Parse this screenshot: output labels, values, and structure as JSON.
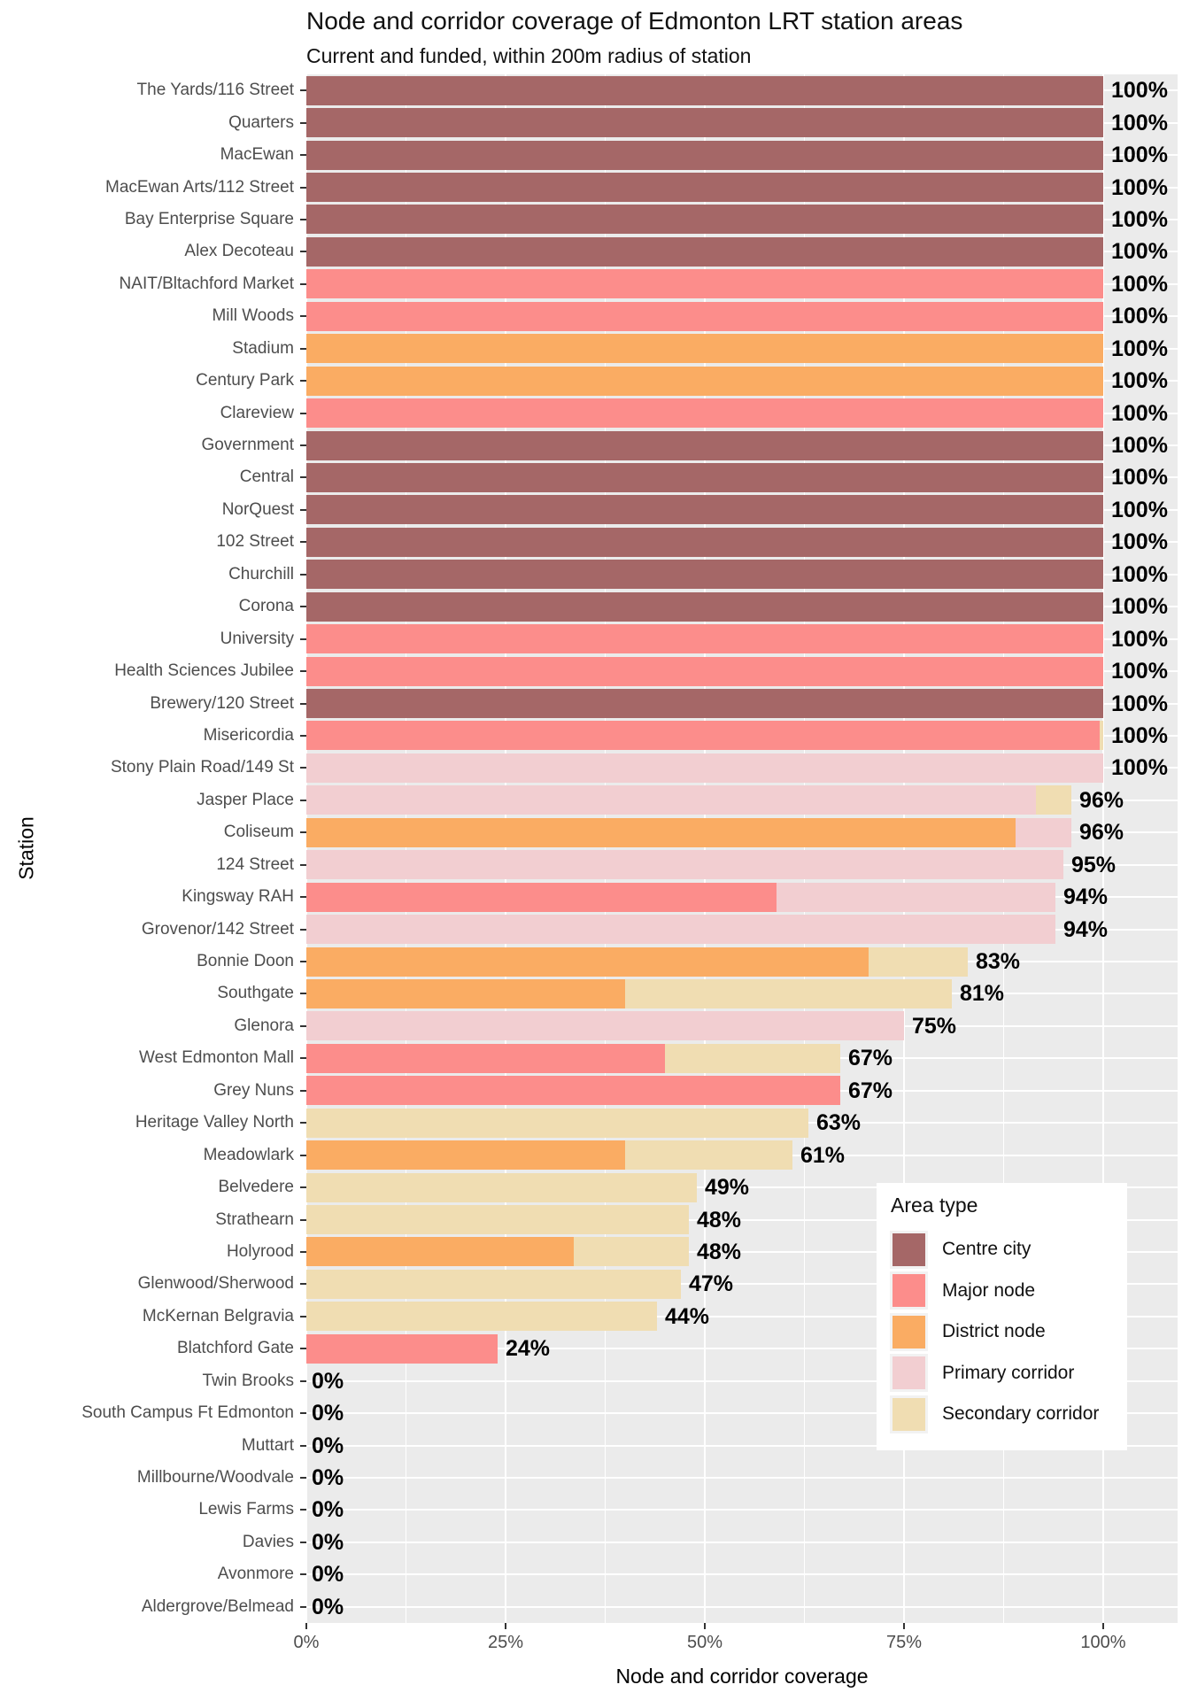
{
  "chart_data": {
    "type": "bar",
    "orientation": "horizontal",
    "stacked": true,
    "title": "Node and corridor coverage of Edmonton LRT station areas",
    "subtitle": "Current and funded, within 200m radius of station",
    "xlabel": "Node and corridor coverage",
    "ylabel": "Station",
    "xlim_pct": [
      0,
      109.3
    ],
    "grid": "on",
    "x_minor_step_pct": 12.5,
    "x_ticks": [
      {
        "pct": 0,
        "label": "0%"
      },
      {
        "pct": 25,
        "label": "25%"
      },
      {
        "pct": 50,
        "label": "50%"
      },
      {
        "pct": 75,
        "label": "75%"
      },
      {
        "pct": 100,
        "label": "100%"
      }
    ],
    "style": {
      "panel_bg": "#EBEBEB",
      "grid_color": "#FFFFFF",
      "axis_text_color": "#4D4D4D",
      "tick_color": "#333333",
      "value_label_color": "#000000"
    },
    "legend": {
      "title": "Area type",
      "position": "inside-bottom-right",
      "entries": [
        {
          "id": "centre_city",
          "label": "Centre city",
          "color": "#A56767"
        },
        {
          "id": "major_node",
          "label": "Major node",
          "color": "#FC8D8B"
        },
        {
          "id": "district_node",
          "label": "District node",
          "color": "#FAAC63"
        },
        {
          "id": "primary_corridor",
          "label": "Primary corridor",
          "color": "#F2CED1"
        },
        {
          "id": "secondary_corridor",
          "label": "Secondary corridor",
          "color": "#F0DDB2"
        }
      ]
    },
    "stations": [
      {
        "name": "The Yards/116 Street",
        "label": "100%",
        "segments": [
          {
            "type": "centre_city",
            "value": 100
          }
        ]
      },
      {
        "name": "Quarters",
        "label": "100%",
        "segments": [
          {
            "type": "centre_city",
            "value": 100
          }
        ]
      },
      {
        "name": "MacEwan",
        "label": "100%",
        "segments": [
          {
            "type": "centre_city",
            "value": 100
          }
        ]
      },
      {
        "name": "MacEwan Arts/112 Street",
        "label": "100%",
        "segments": [
          {
            "type": "centre_city",
            "value": 100
          }
        ]
      },
      {
        "name": "Bay Enterprise Square",
        "label": "100%",
        "segments": [
          {
            "type": "centre_city",
            "value": 100
          }
        ]
      },
      {
        "name": "Alex Decoteau",
        "label": "100%",
        "segments": [
          {
            "type": "centre_city",
            "value": 100
          }
        ]
      },
      {
        "name": "NAIT/Bltachford Market",
        "label": "100%",
        "segments": [
          {
            "type": "major_node",
            "value": 100
          }
        ]
      },
      {
        "name": "Mill Woods",
        "label": "100%",
        "segments": [
          {
            "type": "major_node",
            "value": 100
          }
        ]
      },
      {
        "name": "Stadium",
        "label": "100%",
        "segments": [
          {
            "type": "district_node",
            "value": 100
          }
        ]
      },
      {
        "name": "Century Park",
        "label": "100%",
        "segments": [
          {
            "type": "district_node",
            "value": 100
          }
        ]
      },
      {
        "name": "Clareview",
        "label": "100%",
        "segments": [
          {
            "type": "major_node",
            "value": 100
          }
        ]
      },
      {
        "name": "Government",
        "label": "100%",
        "segments": [
          {
            "type": "centre_city",
            "value": 100
          }
        ]
      },
      {
        "name": "Central",
        "label": "100%",
        "segments": [
          {
            "type": "centre_city",
            "value": 100
          }
        ]
      },
      {
        "name": "NorQuest",
        "label": "100%",
        "segments": [
          {
            "type": "centre_city",
            "value": 100
          }
        ]
      },
      {
        "name": "102 Street",
        "label": "100%",
        "segments": [
          {
            "type": "centre_city",
            "value": 100
          }
        ]
      },
      {
        "name": "Churchill",
        "label": "100%",
        "segments": [
          {
            "type": "centre_city",
            "value": 100
          }
        ]
      },
      {
        "name": "Corona",
        "label": "100%",
        "segments": [
          {
            "type": "centre_city",
            "value": 100
          }
        ]
      },
      {
        "name": "University",
        "label": "100%",
        "segments": [
          {
            "type": "major_node",
            "value": 100
          }
        ]
      },
      {
        "name": "Health Sciences Jubilee",
        "label": "100%",
        "segments": [
          {
            "type": "major_node",
            "value": 100
          }
        ]
      },
      {
        "name": "Brewery/120 Street",
        "label": "100%",
        "segments": [
          {
            "type": "centre_city",
            "value": 100
          }
        ]
      },
      {
        "name": "Misericordia",
        "label": "100%",
        "segments": [
          {
            "type": "major_node",
            "value": 99.5
          },
          {
            "type": "secondary_corridor",
            "value": 0.5
          }
        ]
      },
      {
        "name": "Stony Plain Road/149 St",
        "label": "100%",
        "segments": [
          {
            "type": "primary_corridor",
            "value": 100
          }
        ]
      },
      {
        "name": "Jasper Place",
        "label": "96%",
        "segments": [
          {
            "type": "primary_corridor",
            "value": 91.5
          },
          {
            "type": "secondary_corridor",
            "value": 4.5
          }
        ]
      },
      {
        "name": "Coliseum",
        "label": "96%",
        "segments": [
          {
            "type": "district_node",
            "value": 89
          },
          {
            "type": "primary_corridor",
            "value": 7
          }
        ]
      },
      {
        "name": "124 Street",
        "label": "95%",
        "segments": [
          {
            "type": "primary_corridor",
            "value": 95
          }
        ]
      },
      {
        "name": "Kingsway RAH",
        "label": "94%",
        "segments": [
          {
            "type": "major_node",
            "value": 59
          },
          {
            "type": "primary_corridor",
            "value": 35
          }
        ]
      },
      {
        "name": "Grovenor/142 Street",
        "label": "94%",
        "segments": [
          {
            "type": "primary_corridor",
            "value": 94
          }
        ]
      },
      {
        "name": "Bonnie Doon",
        "label": "83%",
        "segments": [
          {
            "type": "district_node",
            "value": 70.5
          },
          {
            "type": "secondary_corridor",
            "value": 12.5
          }
        ]
      },
      {
        "name": "Southgate",
        "label": "81%",
        "segments": [
          {
            "type": "district_node",
            "value": 40
          },
          {
            "type": "secondary_corridor",
            "value": 41
          }
        ]
      },
      {
        "name": "Glenora",
        "label": "75%",
        "segments": [
          {
            "type": "primary_corridor",
            "value": 75
          }
        ]
      },
      {
        "name": "West Edmonton Mall",
        "label": "67%",
        "segments": [
          {
            "type": "major_node",
            "value": 45
          },
          {
            "type": "secondary_corridor",
            "value": 22
          }
        ]
      },
      {
        "name": "Grey Nuns",
        "label": "67%",
        "segments": [
          {
            "type": "major_node",
            "value": 67
          }
        ]
      },
      {
        "name": "Heritage Valley North",
        "label": "63%",
        "segments": [
          {
            "type": "secondary_corridor",
            "value": 63
          }
        ]
      },
      {
        "name": "Meadowlark",
        "label": "61%",
        "segments": [
          {
            "type": "district_node",
            "value": 40
          },
          {
            "type": "secondary_corridor",
            "value": 21
          }
        ]
      },
      {
        "name": "Belvedere",
        "label": "49%",
        "segments": [
          {
            "type": "secondary_corridor",
            "value": 49
          }
        ]
      },
      {
        "name": "Strathearn",
        "label": "48%",
        "segments": [
          {
            "type": "secondary_corridor",
            "value": 48
          }
        ]
      },
      {
        "name": "Holyrood",
        "label": "48%",
        "segments": [
          {
            "type": "district_node",
            "value": 33.5
          },
          {
            "type": "secondary_corridor",
            "value": 14.5
          }
        ]
      },
      {
        "name": "Glenwood/Sherwood",
        "label": "47%",
        "segments": [
          {
            "type": "secondary_corridor",
            "value": 47
          }
        ]
      },
      {
        "name": "McKernan Belgravia",
        "label": "44%",
        "segments": [
          {
            "type": "secondary_corridor",
            "value": 44
          }
        ]
      },
      {
        "name": "Blatchford Gate",
        "label": "24%",
        "segments": [
          {
            "type": "major_node",
            "value": 24
          }
        ]
      },
      {
        "name": "Twin Brooks",
        "label": "0%",
        "segments": []
      },
      {
        "name": "South Campus Ft Edmonton",
        "label": "0%",
        "segments": []
      },
      {
        "name": "Muttart",
        "label": "0%",
        "segments": []
      },
      {
        "name": "Millbourne/Woodvale",
        "label": "0%",
        "segments": []
      },
      {
        "name": "Lewis Farms",
        "label": "0%",
        "segments": []
      },
      {
        "name": "Davies",
        "label": "0%",
        "segments": []
      },
      {
        "name": "Avonmore",
        "label": "0%",
        "segments": []
      },
      {
        "name": "Aldergrove/Belmead",
        "label": "0%",
        "segments": []
      }
    ]
  }
}
